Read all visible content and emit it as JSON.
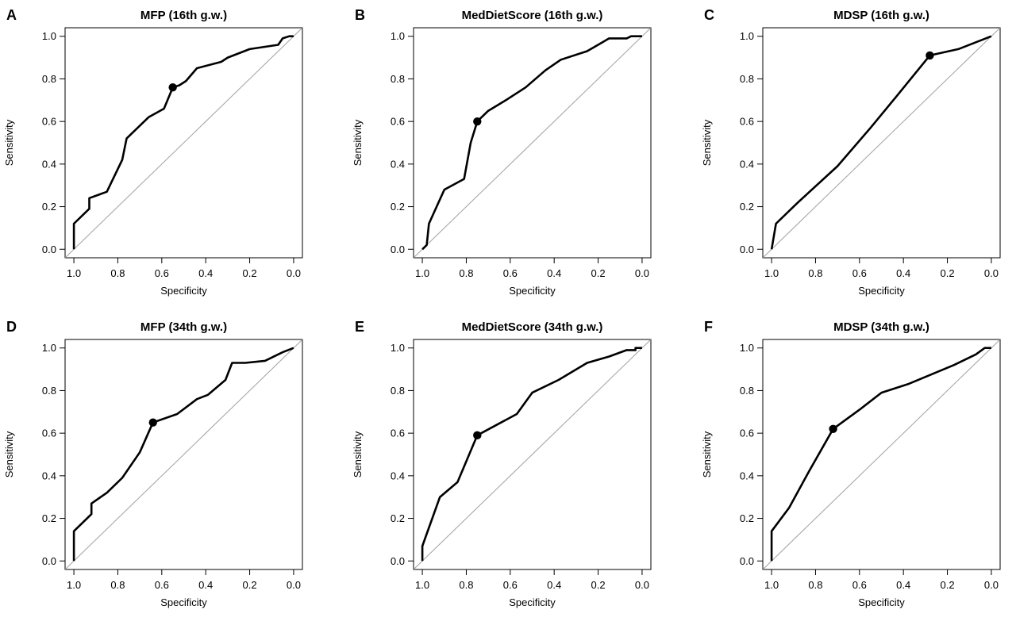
{
  "chart_data": [
    {
      "type": "line",
      "panel": "A",
      "title": "MFP (16th g.w.)",
      "xlabel": "Specificity",
      "ylabel": "Sensitivity",
      "x_reversed": true,
      "xlim": [
        1.0,
        0.0
      ],
      "ylim": [
        0.0,
        1.0
      ],
      "xticks": [
        "1.0",
        "0.8",
        "0.6",
        "0.4",
        "0.2",
        "0.0"
      ],
      "yticks": [
        "0.0",
        "0.2",
        "0.4",
        "0.6",
        "0.8",
        "1.0"
      ],
      "reference_line": "diagonal",
      "roc": {
        "specificity": [
          1.0,
          1.0,
          0.93,
          0.93,
          0.85,
          0.78,
          0.76,
          0.66,
          0.59,
          0.55,
          0.52,
          0.49,
          0.44,
          0.33,
          0.3,
          0.2,
          0.07,
          0.05,
          0.02,
          0.0
        ],
        "sensitivity": [
          0.0,
          0.12,
          0.19,
          0.24,
          0.27,
          0.42,
          0.52,
          0.62,
          0.66,
          0.76,
          0.77,
          0.79,
          0.85,
          0.88,
          0.9,
          0.94,
          0.96,
          0.99,
          1.0,
          1.0
        ]
      },
      "optimal_point": {
        "specificity": 0.55,
        "sensitivity": 0.76
      }
    },
    {
      "type": "line",
      "panel": "B",
      "title": "MedDietScore (16th g.w.)",
      "xlabel": "Specificity",
      "ylabel": "Sensitivity",
      "x_reversed": true,
      "xlim": [
        1.0,
        0.0
      ],
      "ylim": [
        0.0,
        1.0
      ],
      "xticks": [
        "1.0",
        "0.8",
        "0.6",
        "0.4",
        "0.2",
        "0.0"
      ],
      "yticks": [
        "0.0",
        "0.2",
        "0.4",
        "0.6",
        "0.8",
        "1.0"
      ],
      "reference_line": "diagonal",
      "roc": {
        "specificity": [
          1.0,
          0.98,
          0.97,
          0.9,
          0.81,
          0.78,
          0.75,
          0.7,
          0.62,
          0.53,
          0.44,
          0.37,
          0.25,
          0.15,
          0.07,
          0.05,
          0.0
        ],
        "sensitivity": [
          0.0,
          0.02,
          0.12,
          0.28,
          0.33,
          0.5,
          0.6,
          0.65,
          0.7,
          0.76,
          0.84,
          0.89,
          0.93,
          0.99,
          0.99,
          1.0,
          1.0
        ]
      },
      "optimal_point": {
        "specificity": 0.75,
        "sensitivity": 0.6
      }
    },
    {
      "type": "line",
      "panel": "C",
      "title": "MDSP (16th g.w.)",
      "xlabel": "Specificity",
      "ylabel": "Sensitivity",
      "x_reversed": true,
      "xlim": [
        1.0,
        0.0
      ],
      "ylim": [
        0.0,
        1.0
      ],
      "xticks": [
        "1.0",
        "0.8",
        "0.6",
        "0.4",
        "0.2",
        "0.0"
      ],
      "yticks": [
        "0.0",
        "0.2",
        "0.4",
        "0.6",
        "0.8",
        "1.0"
      ],
      "reference_line": "diagonal",
      "roc": {
        "specificity": [
          1.0,
          0.98,
          0.88,
          0.7,
          0.55,
          0.43,
          0.28,
          0.15,
          0.0
        ],
        "sensitivity": [
          0.0,
          0.12,
          0.22,
          0.39,
          0.57,
          0.72,
          0.91,
          0.94,
          1.0
        ]
      },
      "optimal_point": {
        "specificity": 0.28,
        "sensitivity": 0.91
      }
    },
    {
      "type": "line",
      "panel": "D",
      "title": "MFP (34th g.w.)",
      "xlabel": "Specificity",
      "ylabel": "Sensitivity",
      "x_reversed": true,
      "xlim": [
        1.0,
        0.0
      ],
      "ylim": [
        0.0,
        1.0
      ],
      "xticks": [
        "1.0",
        "0.8",
        "0.6",
        "0.4",
        "0.2",
        "0.0"
      ],
      "yticks": [
        "0.0",
        "0.2",
        "0.4",
        "0.6",
        "0.8",
        "1.0"
      ],
      "reference_line": "diagonal",
      "roc": {
        "specificity": [
          1.0,
          1.0,
          0.92,
          0.92,
          0.85,
          0.78,
          0.7,
          0.64,
          0.53,
          0.44,
          0.39,
          0.31,
          0.28,
          0.22,
          0.13,
          0.05,
          0.0
        ],
        "sensitivity": [
          0.0,
          0.14,
          0.22,
          0.27,
          0.32,
          0.39,
          0.51,
          0.65,
          0.69,
          0.76,
          0.78,
          0.85,
          0.93,
          0.93,
          0.94,
          0.98,
          1.0
        ]
      },
      "optimal_point": {
        "specificity": 0.64,
        "sensitivity": 0.65
      }
    },
    {
      "type": "line",
      "panel": "E",
      "title": "MedDietScore (34th g.w.)",
      "xlabel": "Specificity",
      "ylabel": "Sensitivity",
      "x_reversed": true,
      "xlim": [
        1.0,
        0.0
      ],
      "ylim": [
        0.0,
        1.0
      ],
      "xticks": [
        "1.0",
        "0.8",
        "0.6",
        "0.4",
        "0.2",
        "0.0"
      ],
      "yticks": [
        "0.0",
        "0.2",
        "0.4",
        "0.6",
        "0.8",
        "1.0"
      ],
      "reference_line": "diagonal",
      "roc": {
        "specificity": [
          1.0,
          1.0,
          0.92,
          0.84,
          0.75,
          0.57,
          0.5,
          0.38,
          0.25,
          0.15,
          0.07,
          0.03,
          0.03,
          0.0
        ],
        "sensitivity": [
          0.0,
          0.07,
          0.3,
          0.37,
          0.59,
          0.69,
          0.79,
          0.85,
          0.93,
          0.96,
          0.99,
          0.99,
          1.0,
          1.0
        ]
      },
      "optimal_point": {
        "specificity": 0.75,
        "sensitivity": 0.59
      }
    },
    {
      "type": "line",
      "panel": "F",
      "title": "MDSP (34th g.w.)",
      "xlabel": "Specificity",
      "ylabel": "Sensitivity",
      "x_reversed": true,
      "xlim": [
        1.0,
        0.0
      ],
      "ylim": [
        0.0,
        1.0
      ],
      "xticks": [
        "1.0",
        "0.8",
        "0.6",
        "0.4",
        "0.2",
        "0.0"
      ],
      "yticks": [
        "0.0",
        "0.2",
        "0.4",
        "0.6",
        "0.8",
        "1.0"
      ],
      "reference_line": "diagonal",
      "roc": {
        "specificity": [
          1.0,
          1.0,
          0.92,
          0.83,
          0.72,
          0.6,
          0.5,
          0.38,
          0.17,
          0.07,
          0.03,
          0.0
        ],
        "sensitivity": [
          0.0,
          0.14,
          0.25,
          0.42,
          0.62,
          0.71,
          0.79,
          0.83,
          0.92,
          0.97,
          1.0,
          1.0
        ]
      },
      "optimal_point": {
        "specificity": 0.72,
        "sensitivity": 0.62
      }
    }
  ]
}
